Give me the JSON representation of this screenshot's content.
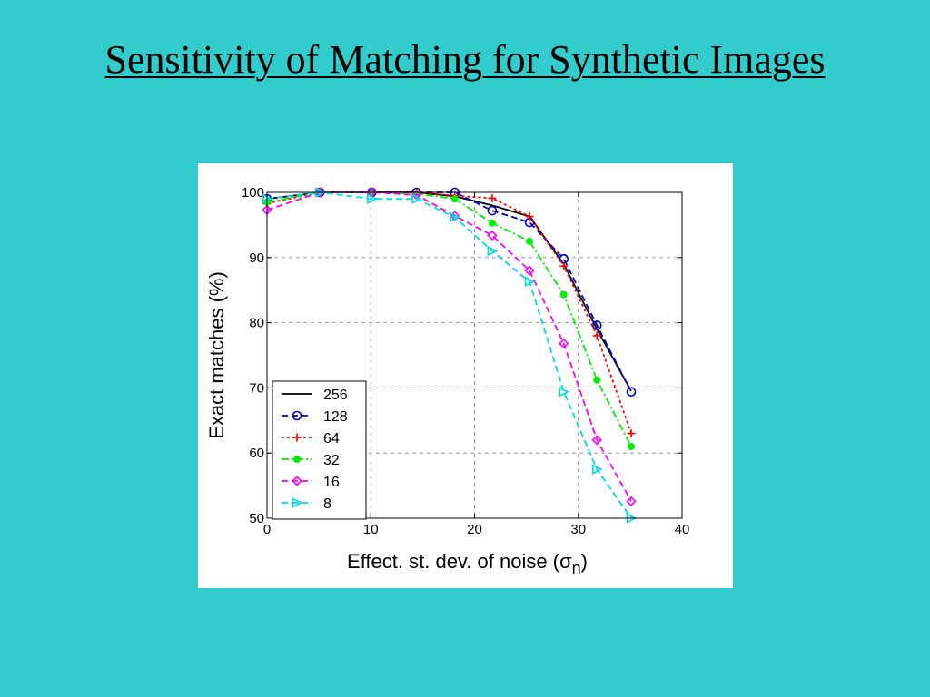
{
  "slide": {
    "title": "Sensitivity of Matching for Synthetic Images",
    "background": "#33CCCC"
  },
  "chart_data": {
    "type": "line",
    "xlabel": "Effect. st. dev. of noise (",
    "xlabel_symbol": "σ",
    "xlabel_sub": "n",
    "xlabel_close": ")",
    "ylabel": "Exact matches (%)",
    "xlim": [
      0,
      40
    ],
    "ylim": [
      50,
      100
    ],
    "xticks": [
      0,
      10,
      20,
      30,
      40
    ],
    "yticks": [
      50,
      60,
      70,
      80,
      90,
      100
    ],
    "grid": true,
    "legend_position": "lower-left",
    "series": [
      {
        "name": "256",
        "color": "#000000",
        "dash": "",
        "marker": "none",
        "x": [
          0,
          5.1,
          10.1,
          14.4,
          18.1,
          21.7,
          25.3,
          28.6,
          31.8,
          35.1
        ],
        "y": [
          99.0,
          100,
          100,
          100,
          99.4,
          98.0,
          96.3,
          89.0,
          79.0,
          69.5
        ]
      },
      {
        "name": "128",
        "color": "#0000CC",
        "dash": "7,4",
        "marker": "circle",
        "x": [
          0,
          5.1,
          10.1,
          14.4,
          18.1,
          21.7,
          25.3,
          28.6,
          31.8,
          35.1
        ],
        "y": [
          99.0,
          100,
          100,
          100,
          100,
          97.2,
          95.4,
          89.8,
          79.6,
          69.4
        ]
      },
      {
        "name": "64",
        "color": "#FF0000",
        "dash": "3,3",
        "marker": "plus",
        "x": [
          0,
          5.1,
          10.1,
          14.4,
          18.1,
          21.7,
          25.3,
          28.6,
          31.8,
          35.1
        ],
        "y": [
          98.3,
          100,
          100,
          100,
          99.5,
          99.1,
          96.3,
          88.7,
          78.0,
          63.0
        ]
      },
      {
        "name": "32",
        "color": "#00EE00",
        "dash": "8,3,2,3",
        "marker": "dot",
        "x": [
          0,
          5.1,
          10.1,
          14.4,
          18.1,
          21.7,
          25.3,
          28.6,
          31.8,
          35.1
        ],
        "y": [
          98.5,
          100,
          100,
          99.8,
          99.0,
          95.3,
          92.5,
          84.3,
          71.2,
          61.0
        ]
      },
      {
        "name": "16",
        "color": "#FF00FF",
        "dash": "7,4",
        "marker": "diamond",
        "x": [
          0,
          5.1,
          10.1,
          14.4,
          18.1,
          21.7,
          25.3,
          28.6,
          31.8,
          35.1
        ],
        "y": [
          97.3,
          100,
          100,
          99.6,
          96.4,
          93.4,
          88.0,
          76.8,
          62.0,
          52.6
        ]
      },
      {
        "name": "8",
        "color": "#00DDDD",
        "dash": "7,4",
        "marker": "triangle",
        "x": [
          0,
          5.1,
          10.1,
          14.4,
          18.1,
          21.7,
          25.3,
          28.6,
          31.8,
          35.1
        ],
        "y": [
          99.0,
          100,
          99.0,
          99.0,
          96.2,
          91.0,
          86.3,
          69.4,
          57.5,
          50.0
        ]
      }
    ]
  }
}
